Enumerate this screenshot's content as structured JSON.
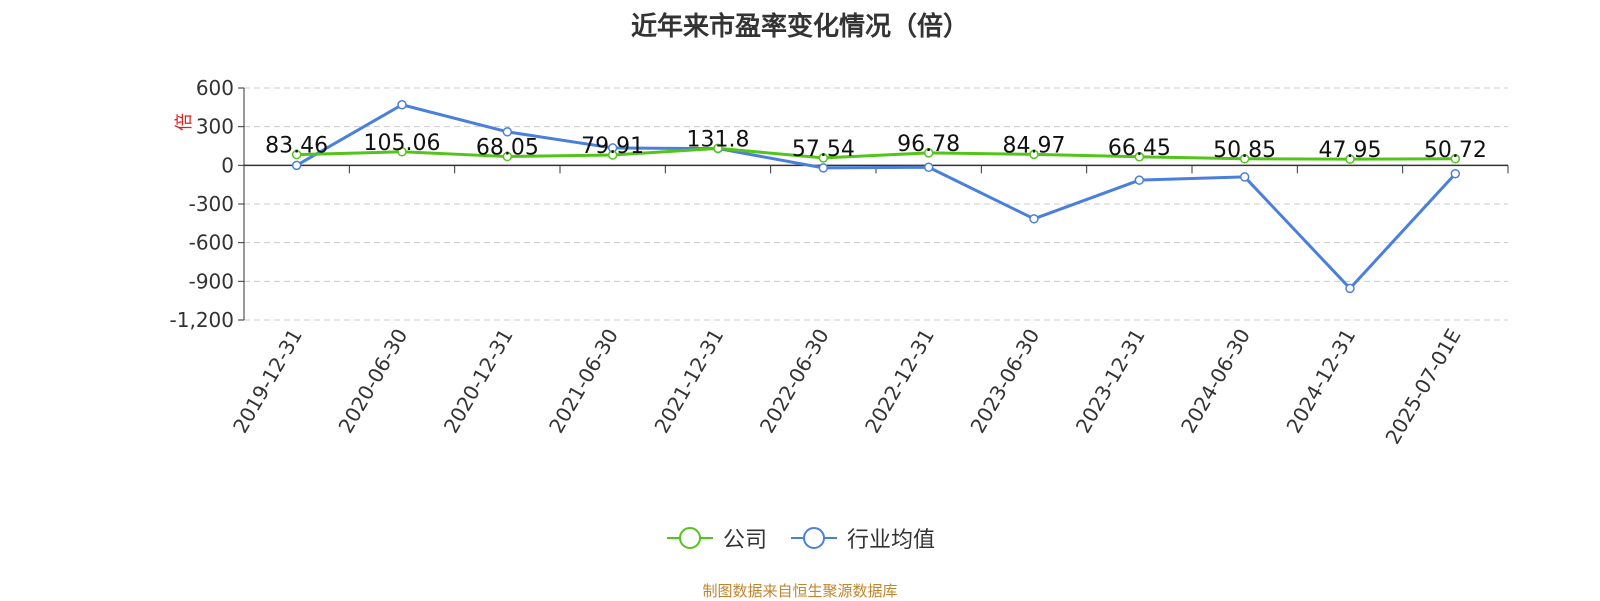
{
  "chart_data": {
    "type": "line",
    "title": "近年来市盈率变化情况（倍）",
    "ylabel": "倍",
    "categories": [
      "2019-12-31",
      "2020-06-30",
      "2020-12-31",
      "2021-06-30",
      "2021-12-31",
      "2022-06-30",
      "2022-12-31",
      "2023-06-30",
      "2023-12-31",
      "2024-06-30",
      "2024-12-31",
      "2025-07-01E"
    ],
    "ylim": [
      -1200,
      600
    ],
    "yticks": [
      600,
      300,
      0,
      -300,
      -600,
      -900,
      -1200
    ],
    "ytick_labels": [
      "600",
      "300",
      "0",
      "-300",
      "-600",
      "-900",
      "-1,200"
    ],
    "grid": true,
    "legend_position": "bottom",
    "series": [
      {
        "name": "公司",
        "color": "#52c41a",
        "values": [
          83.46,
          105.06,
          68.05,
          79.91,
          131.8,
          57.54,
          96.78,
          84.97,
          66.45,
          50.85,
          47.95,
          50.72
        ],
        "labels": [
          "83.46",
          "105.06",
          "68.05",
          "79.91",
          "131.8",
          "57.54",
          "96.78",
          "84.97",
          "66.45",
          "50.85",
          "47.95",
          "50.72"
        ]
      },
      {
        "name": "行业均值",
        "color": "#4a7fdc",
        "values": [
          0,
          470,
          260,
          135,
          130,
          -20,
          -15,
          -415,
          -115,
          -90,
          -955,
          -65
        ]
      }
    ]
  },
  "footer": {
    "source": "制图数据来自恒生聚源数据库"
  }
}
